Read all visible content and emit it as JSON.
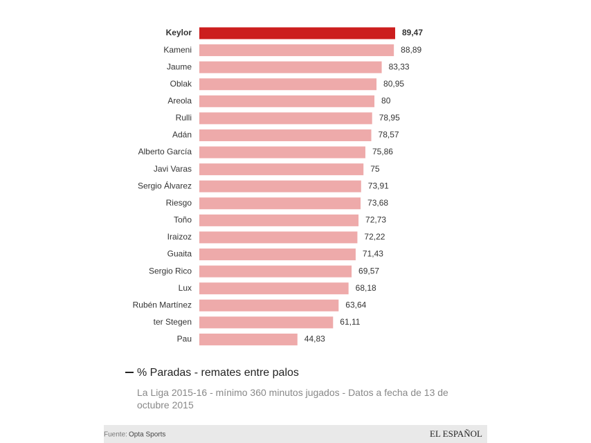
{
  "chart_data": {
    "type": "bar",
    "orientation": "horizontal",
    "categories": [
      "Keylor",
      "Kameni",
      "Jaume",
      "Oblak",
      "Areola",
      "Rulli",
      "Adán",
      "Alberto García",
      "Javi Varas",
      "Sergio Álvarez",
      "Riesgo",
      "Toño",
      "Iraizoz",
      "Guaita",
      "Sergio Rico",
      "Lux",
      "Rubén Martínez",
      "ter Stegen",
      "Pau"
    ],
    "values": [
      89.47,
      88.89,
      83.33,
      80.95,
      80,
      78.95,
      78.57,
      75.86,
      75,
      73.91,
      73.68,
      72.73,
      72.22,
      71.43,
      69.57,
      68.18,
      63.64,
      61.11,
      44.83
    ],
    "value_labels": [
      "89,47",
      "88,89",
      "83,33",
      "80,95",
      "80",
      "78,95",
      "78,57",
      "75,86",
      "75",
      "73,91",
      "73,68",
      "72,73",
      "72,22",
      "71,43",
      "69,57",
      "68,18",
      "63,64",
      "61,11",
      "44,83"
    ],
    "colors": [
      "#cc1e1e",
      "#eeaaaa",
      "#eeaaaa",
      "#eeaaaa",
      "#eeaaaa",
      "#eeaaaa",
      "#eeaaaa",
      "#eeaaaa",
      "#eeaaaa",
      "#eeaaaa",
      "#eeaaaa",
      "#eeaaaa",
      "#eeaaaa",
      "#eeaaaa",
      "#eeaaaa",
      "#eeaaaa",
      "#eeaaaa",
      "#eeaaaa",
      "#eeaaaa"
    ],
    "legend_label": "% Paradas - remates entre palos",
    "subtitle": "La Liga 2015-16 - mínimo 360 minutos jugados - Datos a fecha de 13 de octubre 2015",
    "source_label": "Fuente:",
    "source": "Opta Sports",
    "brand": "EL ESPAÑOL"
  }
}
